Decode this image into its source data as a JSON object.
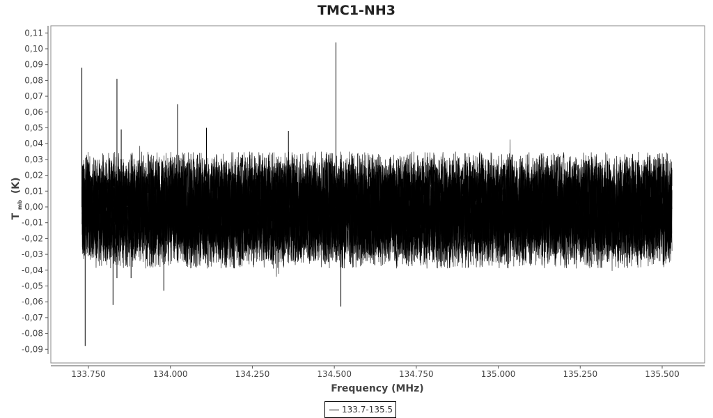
{
  "chart_data": {
    "type": "line",
    "title": "TMC1-NH3",
    "xlabel": "Frequency (MHz)",
    "ylabel_main": "T",
    "ylabel_sub": "mb",
    "ylabel_unit": "(K)",
    "xlim": [
      133.64,
      135.6
    ],
    "ylim": [
      -0.1,
      0.112
    ],
    "x_ticks": [
      133.75,
      134.0,
      134.25,
      134.5,
      134.75,
      135.0,
      135.25,
      135.5
    ],
    "x_tick_labels": [
      "133.750",
      "134.000",
      "134.250",
      "134.500",
      "134.750",
      "135.000",
      "135.250",
      "135.500"
    ],
    "y_ticks": [
      0.11,
      0.1,
      0.09,
      0.08,
      0.07,
      0.06,
      0.05,
      0.04,
      0.03,
      0.02,
      0.01,
      0.0,
      -0.01,
      -0.02,
      -0.03,
      -0.04,
      -0.05,
      -0.06,
      -0.07,
      -0.08,
      -0.09
    ],
    "y_tick_labels": [
      "0,11",
      "0,10",
      "0,09",
      "0,08",
      "0,07",
      "0,06",
      "0,05",
      "0,04",
      "0,03",
      "0,02",
      "0,01",
      "0,00",
      "-0,01",
      "-0,02",
      "-0,03",
      "-0,04",
      "-0,05",
      "-0,06",
      "-0,07",
      "-0,08",
      "-0,09"
    ],
    "series": [
      {
        "name": "133.7-135.5",
        "color": "#000000",
        "x_range": [
          133.73,
          135.53
        ],
        "noise_band": [
          -0.03,
          0.03
        ],
        "spikes": [
          {
            "x": 133.73,
            "y": 0.088
          },
          {
            "x": 133.74,
            "y": -0.088
          },
          {
            "x": 133.837,
            "y": 0.081
          },
          {
            "x": 133.825,
            "y": -0.062
          },
          {
            "x": 134.022,
            "y": 0.065
          },
          {
            "x": 134.505,
            "y": 0.104
          },
          {
            "x": 134.52,
            "y": -0.063
          },
          {
            "x": 134.36,
            "y": 0.048
          },
          {
            "x": 134.11,
            "y": 0.05
          },
          {
            "x": 133.98,
            "y": -0.053
          },
          {
            "x": 133.85,
            "y": 0.049
          },
          {
            "x": 133.837,
            "y": -0.045
          },
          {
            "x": 133.88,
            "y": -0.045
          }
        ]
      }
    ],
    "legend": {
      "position": "bottom-center",
      "entries": [
        "133.7-135.5"
      ]
    },
    "grid": false
  }
}
